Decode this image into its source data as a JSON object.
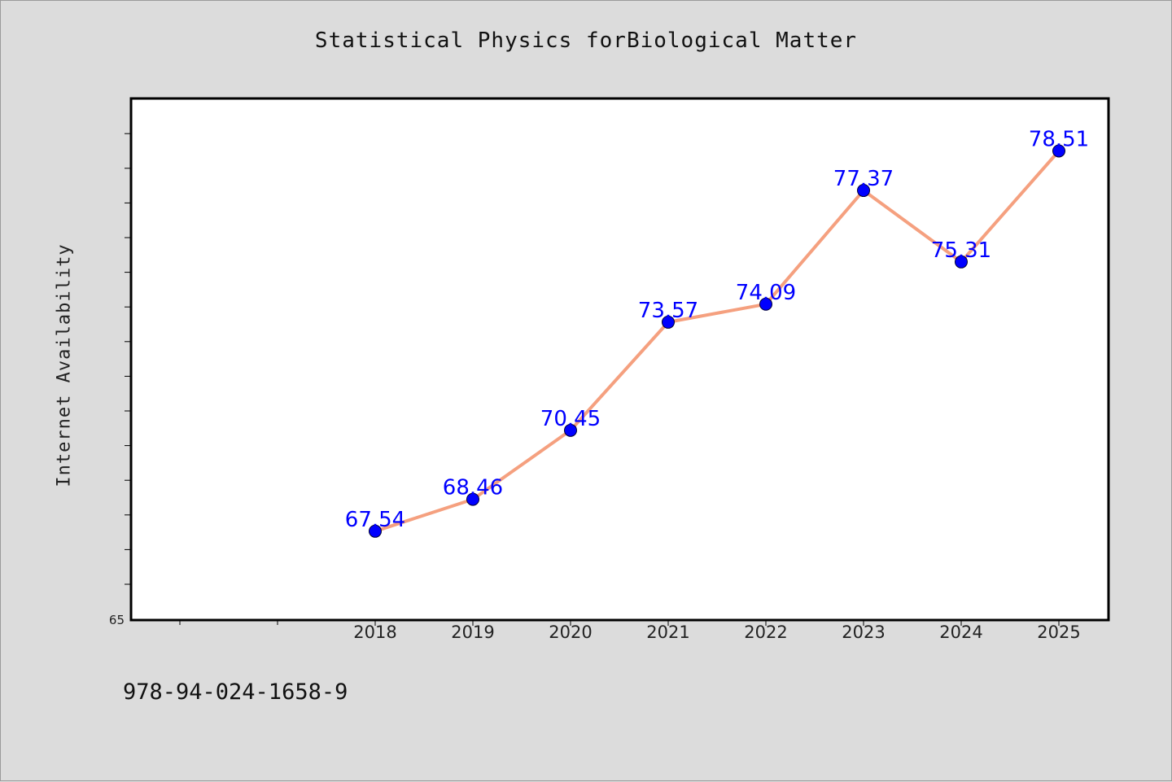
{
  "chart_data": {
    "type": "line",
    "title": "Statistical Physics forBiological Matter",
    "xlabel": "",
    "ylabel": "Internet Availability",
    "categories": [
      "2018",
      "2019",
      "2020",
      "2021",
      "2022",
      "2023",
      "2024",
      "2025"
    ],
    "series": [
      {
        "values": [
          67.54,
          68.46,
          70.45,
          73.57,
          74.09,
          77.37,
          75.31,
          78.51
        ]
      }
    ],
    "value_labels": [
      "67.54",
      "68.46",
      "70.45",
      "73.57",
      "74.09",
      "77.37",
      "75.31",
      "78.51"
    ],
    "y_tick_labels": [
      "65"
    ],
    "ylim": [
      65,
      80
    ],
    "grid": false,
    "colors": {
      "line": "#f5a07f",
      "marker": "#0000ff",
      "label": "#0000ff",
      "plot_bg": "#ffffff",
      "page_bg": "#dcdcdc"
    }
  },
  "footer": {
    "isbn": "978-94-024-1658-9"
  }
}
